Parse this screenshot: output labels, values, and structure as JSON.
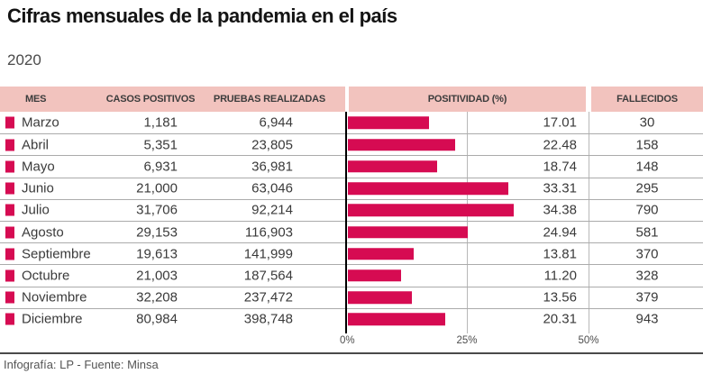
{
  "title": "Cifras mensuales de la pandemia en el país",
  "subtitle": "2020",
  "footer": "Infografía: LP - Fuente: Minsa",
  "colors": {
    "accent": "#d60b52",
    "header_bg": "#f2c3be",
    "header_text": "#3c3c3c",
    "body_text": "#3a3a3a",
    "divider": "#ababab",
    "gridline": "#b8b8b8",
    "axis": "#000000"
  },
  "table": {
    "headers": {
      "mes": "MES",
      "casos": "CASOS POSITIVOS",
      "pruebas": "PRUEBAS REALIZADAS",
      "positividad": "POSITIVIDAD (%)",
      "fallecidos": "FALLECIDOS"
    },
    "rows": [
      {
        "mes": "Marzo",
        "casos": "1,181",
        "pruebas": "6,944",
        "positividad": "17.01",
        "fallecidos": "30"
      },
      {
        "mes": "Abril",
        "casos": "5,351",
        "pruebas": "23,805",
        "positividad": "22.48",
        "fallecidos": "158"
      },
      {
        "mes": "Mayo",
        "casos": "6,931",
        "pruebas": "36,981",
        "positividad": "18.74",
        "fallecidos": "148"
      },
      {
        "mes": "Junio",
        "casos": "21,000",
        "pruebas": "63,046",
        "positividad": "33.31",
        "fallecidos": "295"
      },
      {
        "mes": "Julio",
        "casos": "31,706",
        "pruebas": "92,214",
        "positividad": "34.38",
        "fallecidos": "790"
      },
      {
        "mes": "Agosto",
        "casos": "29,153",
        "pruebas": "116,903",
        "positividad": "24.94",
        "fallecidos": "581"
      },
      {
        "mes": "Septiembre",
        "casos": "19,613",
        "pruebas": "141,999",
        "positividad": "13.81",
        "fallecidos": "370"
      },
      {
        "mes": "Octubre",
        "casos": "21,003",
        "pruebas": "187,564",
        "positividad": "11.20",
        "fallecidos": "328"
      },
      {
        "mes": "Noviembre",
        "casos": "32,208",
        "pruebas": "237,472",
        "positividad": "13.56",
        "fallecidos": "379"
      },
      {
        "mes": "Diciembre",
        "casos": "80,984",
        "pruebas": "398,748",
        "positividad": "20.31",
        "fallecidos": "943"
      }
    ]
  },
  "axis": {
    "ticks": [
      "0%",
      "25%",
      "50%"
    ],
    "max_pct": 50
  },
  "chart_data": {
    "type": "bar",
    "orientation": "horizontal",
    "title": "Cifras mensuales de la pandemia en el país",
    "subtitle": "2020",
    "categories": [
      "Marzo",
      "Abril",
      "Mayo",
      "Junio",
      "Julio",
      "Agosto",
      "Septiembre",
      "Octubre",
      "Noviembre",
      "Diciembre"
    ],
    "series": [
      {
        "name": "Casos positivos",
        "values": [
          1181,
          5351,
          6931,
          21000,
          31706,
          29153,
          19613,
          21003,
          32208,
          80984
        ]
      },
      {
        "name": "Pruebas realizadas",
        "values": [
          6944,
          23805,
          36981,
          63046,
          92214,
          116903,
          141999,
          187564,
          237472,
          398748
        ]
      },
      {
        "name": "Positividad (%)",
        "values": [
          17.01,
          22.48,
          18.74,
          33.31,
          34.38,
          24.94,
          13.81,
          11.2,
          13.56,
          20.31
        ]
      },
      {
        "name": "Fallecidos",
        "values": [
          30,
          158,
          148,
          295,
          790,
          581,
          370,
          328,
          379,
          943
        ]
      }
    ],
    "bar_series": "Positividad (%)",
    "xlim": [
      0,
      50
    ],
    "x_ticks": [
      "0%",
      "25%",
      "50%"
    ],
    "grid": true,
    "legend": "none",
    "source": "Infografía: LP - Fuente: Minsa"
  }
}
